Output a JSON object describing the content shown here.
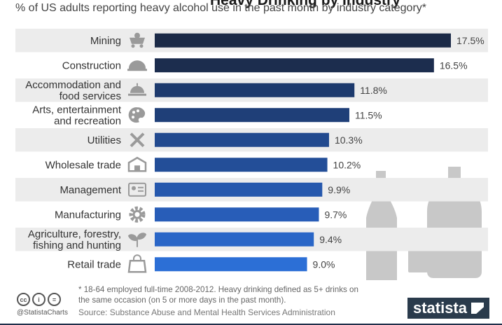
{
  "header": {
    "title": "Heavy Drinking by Industry",
    "subtitle": "% of US adults reporting heavy alcohol use in the past month by industry category*"
  },
  "chart_data": {
    "type": "bar",
    "orientation": "horizontal",
    "categories": [
      "Mining",
      "Construction",
      "Accommodation and food services",
      "Arts, entertainment and recreation",
      "Utilities",
      "Wholesale trade",
      "Management",
      "Manufacturing",
      "Agriculture, forestry, fishing and hunting",
      "Retail trade"
    ],
    "category_lines": [
      [
        "Mining"
      ],
      [
        "Construction"
      ],
      [
        "Accommodation and",
        "food services"
      ],
      [
        "Arts, entertainment",
        "and recreation"
      ],
      [
        "Utilities"
      ],
      [
        "Wholesale trade"
      ],
      [
        "Management"
      ],
      [
        "Manufacturing"
      ],
      [
        "Agriculture, forestry,",
        "fishing and hunting"
      ],
      [
        "Retail trade"
      ]
    ],
    "icons": [
      "mining-cart-icon",
      "hard-hat-icon",
      "service-bell-icon",
      "palette-icon",
      "tools-icon",
      "warehouse-icon",
      "id-card-icon",
      "gear-icon",
      "plant-icon",
      "shopping-bag-icon"
    ],
    "values": [
      17.5,
      16.5,
      11.8,
      11.5,
      10.3,
      10.2,
      9.9,
      9.7,
      9.4,
      9.0
    ],
    "value_labels": [
      "17.5%",
      "16.5%",
      "11.8%",
      "11.5%",
      "10.3%",
      "10.2%",
      "9.9%",
      "9.7%",
      "9.4%",
      "9.0%"
    ],
    "xlim": [
      0,
      17.5
    ],
    "colors": [
      "#1b2a47",
      "#1c2d4e",
      "#1d3a6d",
      "#1f3f78",
      "#224a8f",
      "#234e98",
      "#2658ad",
      "#285db8",
      "#2a66c7",
      "#2c6fd6"
    ],
    "stripe_color": "#ececec"
  },
  "footer": {
    "note": "* 18-64 employed full-time 2008-2012. Heavy drinking defined as 5+ drinks on the same occasion (on 5 or more days in the past month).",
    "source": "Source: Substance Abuse and Mental Health Services Administration",
    "handle": "@StatistaCharts",
    "cc_icons": [
      "cc",
      "i",
      "="
    ]
  },
  "brand": {
    "name": "statista"
  }
}
